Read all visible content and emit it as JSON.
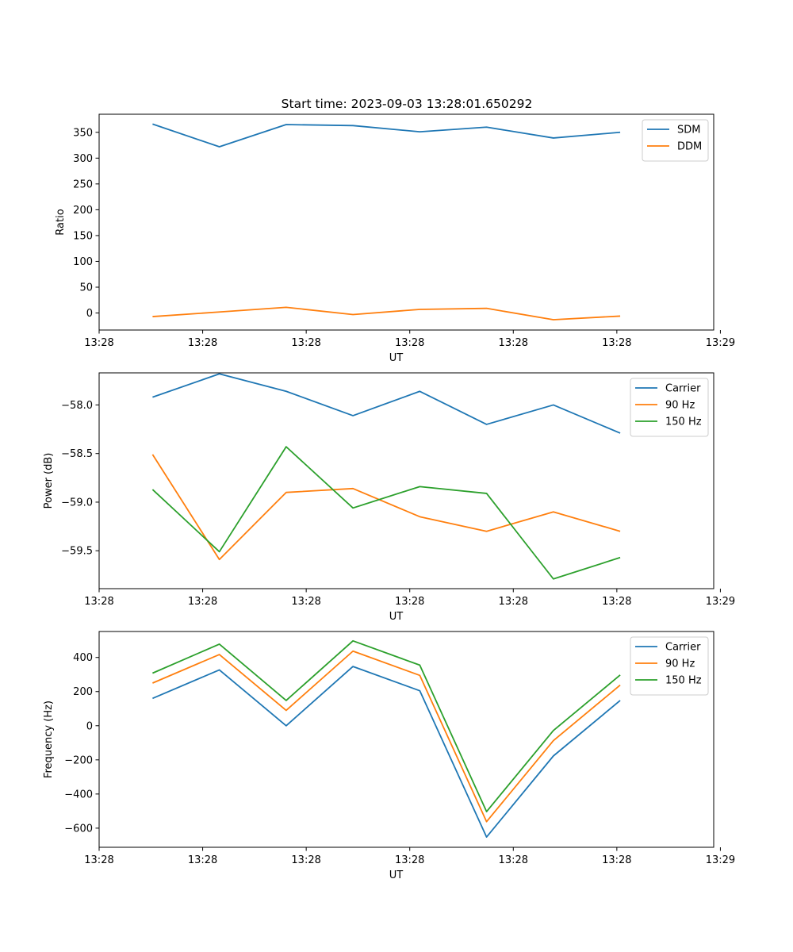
{
  "figure": {
    "title": "Start time: 2023-09-03 13:28:01.650292"
  },
  "colors": {
    "blue": "#1f77b4",
    "orange": "#ff7f0e",
    "green": "#2ca02c"
  },
  "chart_data": [
    {
      "type": "line",
      "title": "Start time: 2023-09-03 13:28:01.650292",
      "xlabel": "UT",
      "ylabel": "Ratio",
      "x": [
        1,
        2,
        3,
        4,
        5,
        6,
        7,
        8
      ],
      "xlim": [
        0.2,
        9.4
      ],
      "xticks": [
        0.2,
        1.75,
        3.3,
        4.85,
        6.4,
        7.95,
        9.5
      ],
      "xtick_labels": [
        "13:28",
        "13:28",
        "13:28",
        "13:28",
        "13:28",
        "13:28",
        "13:29"
      ],
      "ylim": [
        -33,
        385
      ],
      "yticks": [
        0,
        50,
        100,
        150,
        200,
        250,
        300,
        350
      ],
      "ytick_labels": [
        "0",
        "50",
        "100",
        "150",
        "200",
        "250",
        "300",
        "350"
      ],
      "legend": "upper right",
      "series": [
        {
          "name": "SDM",
          "color": "blue",
          "values": [
            366,
            322,
            365,
            363,
            351,
            360,
            339,
            350
          ]
        },
        {
          "name": "DDM",
          "color": "orange",
          "values": [
            -7,
            2,
            11,
            -3,
            7,
            9,
            -13,
            -6
          ]
        }
      ]
    },
    {
      "type": "line",
      "title": "",
      "xlabel": "UT",
      "ylabel": "Power (dB)",
      "x": [
        1,
        2,
        3,
        4,
        5,
        6,
        7,
        8
      ],
      "xlim": [
        0.2,
        9.4
      ],
      "xticks": [
        0.2,
        1.75,
        3.3,
        4.85,
        6.4,
        7.95,
        9.5
      ],
      "xtick_labels": [
        "13:28",
        "13:28",
        "13:28",
        "13:28",
        "13:28",
        "13:28",
        "13:29"
      ],
      "ylim": [
        -59.89,
        -57.67
      ],
      "yticks": [
        -59.5,
        -59.0,
        -58.5,
        -58.0
      ],
      "ytick_labels": [
        "−59.5",
        "−59.0",
        "−58.5",
        "−58.0"
      ],
      "legend": "upper right",
      "series": [
        {
          "name": "Carrier",
          "color": "blue",
          "values": [
            -57.92,
            -57.68,
            -57.86,
            -58.11,
            -57.86,
            -58.2,
            -58.0,
            -58.29
          ]
        },
        {
          "name": "90 Hz",
          "color": "orange",
          "values": [
            -58.51,
            -59.59,
            -58.9,
            -58.86,
            -59.15,
            -59.3,
            -59.1,
            -59.3
          ]
        },
        {
          "name": "150 Hz",
          "color": "green",
          "values": [
            -58.87,
            -59.51,
            -58.43,
            -59.06,
            -58.84,
            -58.91,
            -59.79,
            -59.57
          ]
        }
      ]
    },
    {
      "type": "line",
      "title": "",
      "xlabel": "UT",
      "ylabel": "Frequency (Hz)",
      "x": [
        1,
        2,
        3,
        4,
        5,
        6,
        7,
        8
      ],
      "xlim": [
        0.2,
        9.4
      ],
      "xticks": [
        0.2,
        1.75,
        3.3,
        4.85,
        6.4,
        7.95,
        9.5
      ],
      "xtick_labels": [
        "13:28",
        "13:28",
        "13:28",
        "13:28",
        "13:28",
        "13:28",
        "13:29"
      ],
      "ylim": [
        -712,
        552
      ],
      "yticks": [
        -600,
        -400,
        -200,
        0,
        200,
        400
      ],
      "ytick_labels": [
        "−600",
        "−400",
        "−200",
        "0",
        "200",
        "400"
      ],
      "legend": "upper right",
      "series": [
        {
          "name": "Carrier",
          "color": "blue",
          "values": [
            160,
            327,
            0,
            347,
            205,
            -652,
            -177,
            148
          ]
        },
        {
          "name": "90 Hz",
          "color": "orange",
          "values": [
            250,
            417,
            90,
            437,
            295,
            -562,
            -87,
            238
          ]
        },
        {
          "name": "150 Hz",
          "color": "green",
          "values": [
            308,
            478,
            148,
            497,
            355,
            -503,
            -28,
            297
          ]
        }
      ]
    }
  ]
}
